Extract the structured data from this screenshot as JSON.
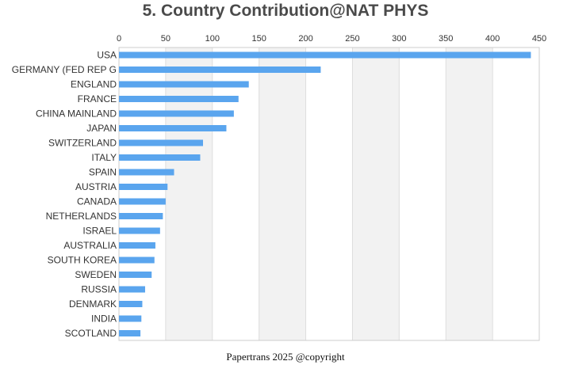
{
  "title": "5. Country Contribution@NAT PHYS",
  "footer": "Papertrans 2025 @copyright",
  "colors": {
    "bar": "#5aa5ee",
    "band": "#f2f2f2",
    "grid": "#dddddd",
    "axis": "#cccccc"
  },
  "chart_data": {
    "type": "bar",
    "orientation": "horizontal",
    "categories": [
      "USA",
      "GERMANY (FED REP G",
      "ENGLAND",
      "FRANCE",
      "CHINA MAINLAND",
      "JAPAN",
      "SWITZERLAND",
      "ITALY",
      "SPAIN",
      "AUSTRIA",
      "CANADA",
      "NETHERLANDS",
      "ISRAEL",
      "AUSTRALIA",
      "SOUTH KOREA",
      "SWEDEN",
      "RUSSIA",
      "DENMARK",
      "INDIA",
      "SCOTLAND"
    ],
    "values": [
      441,
      216,
      139,
      128,
      123,
      115,
      90,
      87,
      59,
      52,
      50,
      47,
      44,
      39,
      38,
      35,
      28,
      25,
      24,
      23
    ],
    "xlim": [
      0,
      450
    ],
    "xticks": [
      0,
      50,
      100,
      150,
      200,
      250,
      300,
      350,
      400,
      450
    ],
    "xaxis_position": "top",
    "grid": true,
    "alternating_bands": true
  }
}
